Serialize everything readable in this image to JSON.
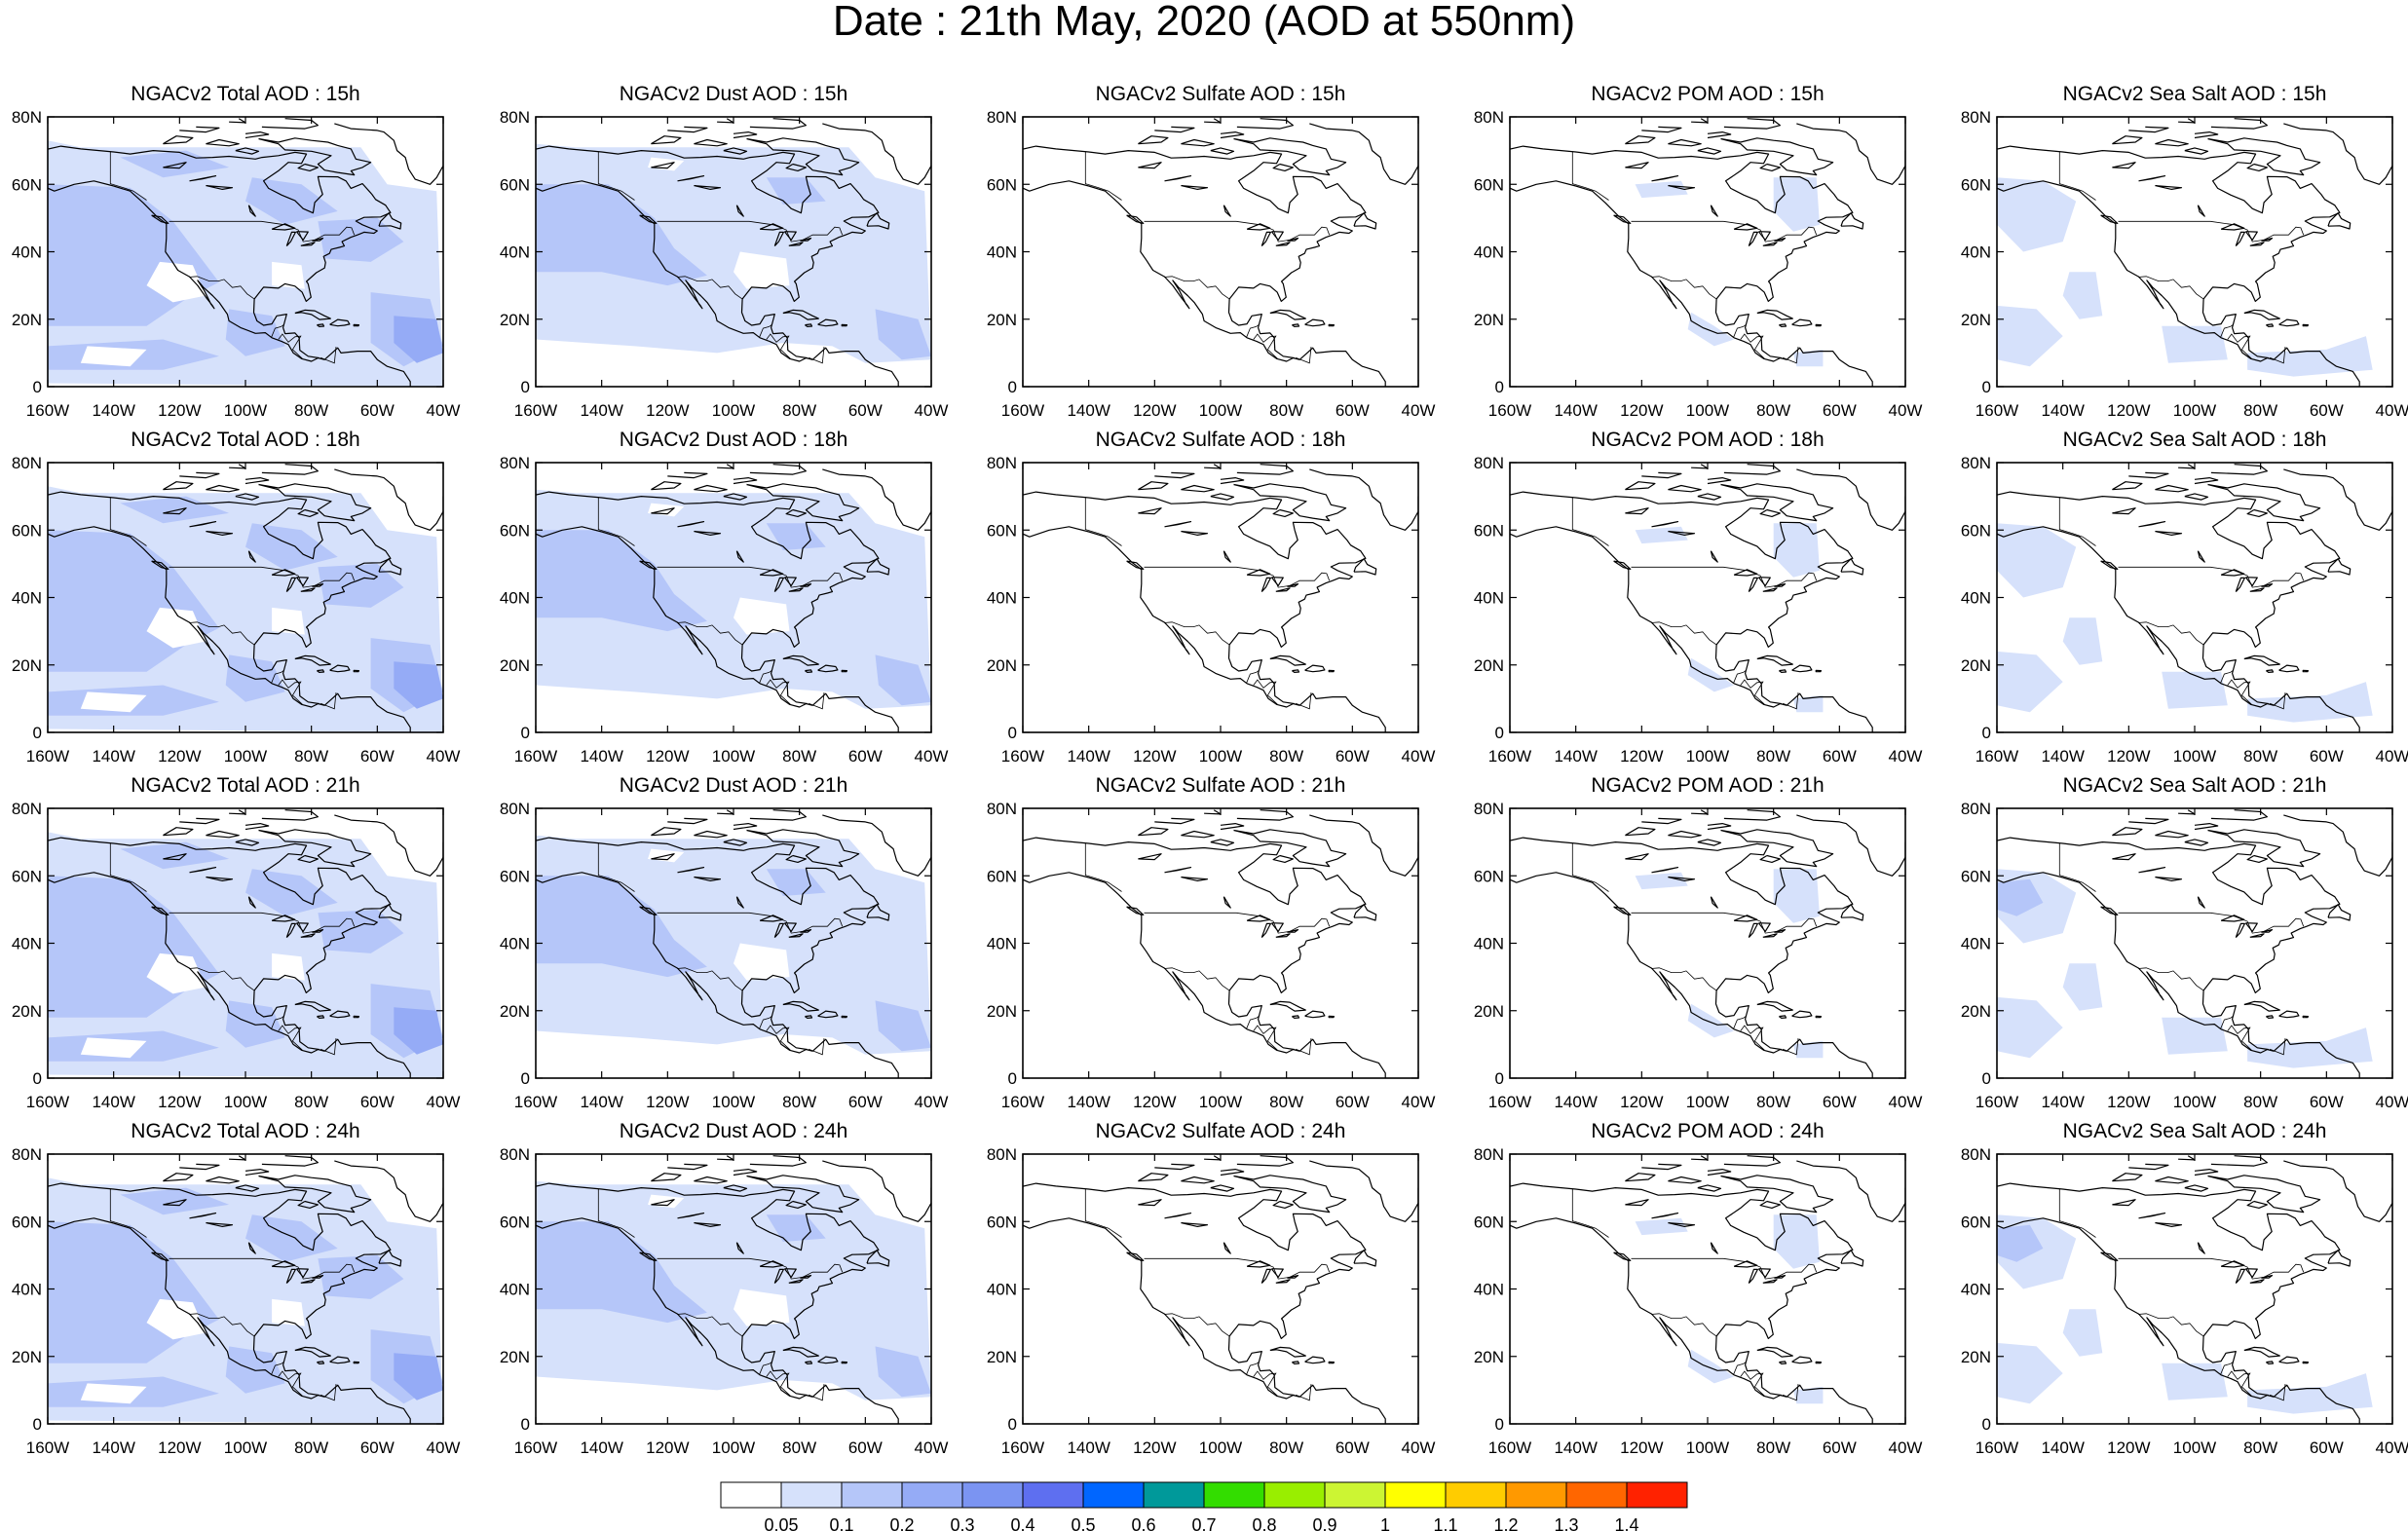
{
  "page": {
    "title": "Date : 21th May, 2020 (AOD at 550nm)"
  },
  "chart_data": {
    "type": "heatmap",
    "title": "Date : 21th May, 2020 (AOD at 550nm)",
    "columns": [
      "Total",
      "Dust",
      "Sulfate",
      "POM",
      "Sea Salt"
    ],
    "rows": [
      "15h",
      "18h",
      "21h",
      "24h"
    ],
    "panel_titles": [
      [
        "NGACv2 Total AOD : 15h",
        "NGACv2 Dust AOD : 15h",
        "NGACv2 Sulfate AOD : 15h",
        "NGACv2 POM AOD : 15h",
        "NGACv2 Sea Salt AOD : 15h"
      ],
      [
        "NGACv2 Total AOD : 18h",
        "NGACv2 Dust AOD : 18h",
        "NGACv2 Sulfate AOD : 18h",
        "NGACv2 POM AOD : 18h",
        "NGACv2 Sea Salt AOD : 18h"
      ],
      [
        "NGACv2 Total AOD : 21h",
        "NGACv2 Dust AOD : 21h",
        "NGACv2 Sulfate AOD : 21h",
        "NGACv2 POM AOD : 21h",
        "NGACv2 Sea Salt AOD : 21h"
      ],
      [
        "NGACv2 Total AOD : 24h",
        "NGACv2 Dust AOD : 24h",
        "NGACv2 Sulfate AOD : 24h",
        "NGACv2 POM AOD : 24h",
        "NGACv2 Sea Salt  AOD : 24h"
      ]
    ],
    "x_ticks": [
      "160W",
      "140W",
      "120W",
      "100W",
      "80W",
      "60W",
      "40W"
    ],
    "x_tick_values": [
      -160,
      -140,
      -120,
      -100,
      -80,
      -60,
      -40
    ],
    "y_ticks": [
      "0",
      "20N",
      "40N",
      "60N",
      "80N"
    ],
    "y_tick_values": [
      0,
      20,
      40,
      60,
      80
    ],
    "xlim": [
      -160,
      -40
    ],
    "ylim": [
      0,
      80
    ],
    "colorbar": {
      "levels": [
        "0.05",
        "0.1",
        "0.2",
        "0.3",
        "0.4",
        "0.5",
        "0.6",
        "0.7",
        "0.8",
        "0.9",
        "1",
        "1.1",
        "1.2",
        "1.3",
        "1.4"
      ],
      "colors": [
        "#ffffff",
        "#d6e1fb",
        "#b5c6f9",
        "#95abf6",
        "#7b94f2",
        "#5e6ff0",
        "#0066ff",
        "#00999a",
        "#33dd00",
        "#99ee00",
        "#ccf533",
        "#ffff00",
        "#ffcc00",
        "#ff9900",
        "#ff6600",
        "#ff2200"
      ]
    },
    "field_levels": {
      "Total": [
        {
          "region": "pacific-west",
          "aod_bin": "0.1-0.2"
        },
        {
          "region": "north-america-broad",
          "aod_bin": "0.05-0.1"
        },
        {
          "region": "atlantic-east",
          "aod_bin": "0.1-0.2"
        },
        {
          "region": "caribbean-plume",
          "aod_bin": "0.2-0.3"
        }
      ],
      "Dust": [
        {
          "region": "pacific-west",
          "aod_bin": "0.05-0.1"
        },
        {
          "region": "north-america-broad",
          "aod_bin": "0.05-0.1"
        },
        {
          "region": "caribbean-plume",
          "aod_bin": "0.1-0.2"
        }
      ],
      "Sulfate": [],
      "POM": [
        {
          "region": "canada-east",
          "aod_bin": "0.05-0.1"
        },
        {
          "region": "mexico-pacific",
          "aod_bin": "0.05-0.1"
        }
      ],
      "Sea Salt": [
        {
          "region": "pacific-northeast",
          "aod_bin": "0.05-0.1"
        },
        {
          "region": "pacific-subtropical",
          "aod_bin": "0.05-0.1"
        },
        {
          "region": "gulf-pacific-south",
          "aod_bin": "0.1-0.2"
        }
      ]
    }
  }
}
